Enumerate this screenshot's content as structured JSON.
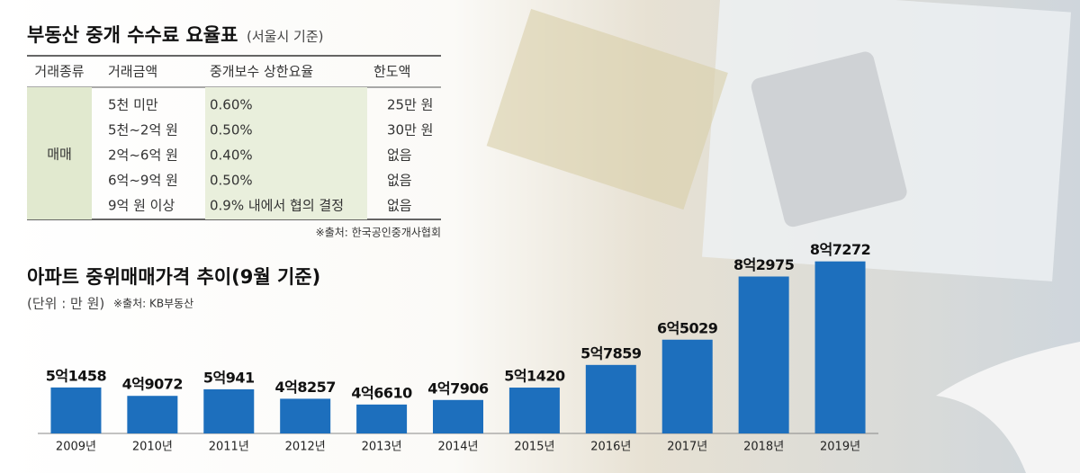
{
  "table": {
    "title": "부동산 중개 수수료 요율표",
    "subtitle": "(서울시 기준)",
    "headers": [
      "거래종류",
      "거래금액",
      "중개보수 상한요율",
      "한도액"
    ],
    "type_label": "매매",
    "rows": [
      [
        "5천 미만",
        "0.60%",
        "25만 원"
      ],
      [
        "5천~2억 원",
        "0.50%",
        "30만 원"
      ],
      [
        "2억~6억 원",
        "0.40%",
        "없음"
      ],
      [
        "6억~9억 원",
        "0.50%",
        "없음"
      ],
      [
        "9억 원 이상",
        "0.9% 내에서 협의 결정",
        "없음"
      ]
    ],
    "source": "※출처: 한국공인중개사협회"
  },
  "chart_data": {
    "type": "bar",
    "title": "아파트 중위매매가격 추이(9월 기준)",
    "unit_note": "(단위 : 만 원)",
    "source": "※출처: KB부동산",
    "categories": [
      "2009년",
      "2010년",
      "2011년",
      "2012년",
      "2013년",
      "2014년",
      "2015년",
      "2016년",
      "2017년",
      "2018년",
      "2019년"
    ],
    "values": [
      51458,
      49072,
      50941,
      48257,
      46610,
      47906,
      51420,
      57859,
      65029,
      82975,
      87272
    ],
    "value_labels": [
      "5억1458",
      "4억9072",
      "5억941",
      "4억8257",
      "4억6610",
      "4억7906",
      "5억1420",
      "5억7859",
      "6억5029",
      "8억2975",
      "8억7272"
    ],
    "color": "#1d6fbd",
    "ylim": [
      38400,
      90000
    ]
  }
}
